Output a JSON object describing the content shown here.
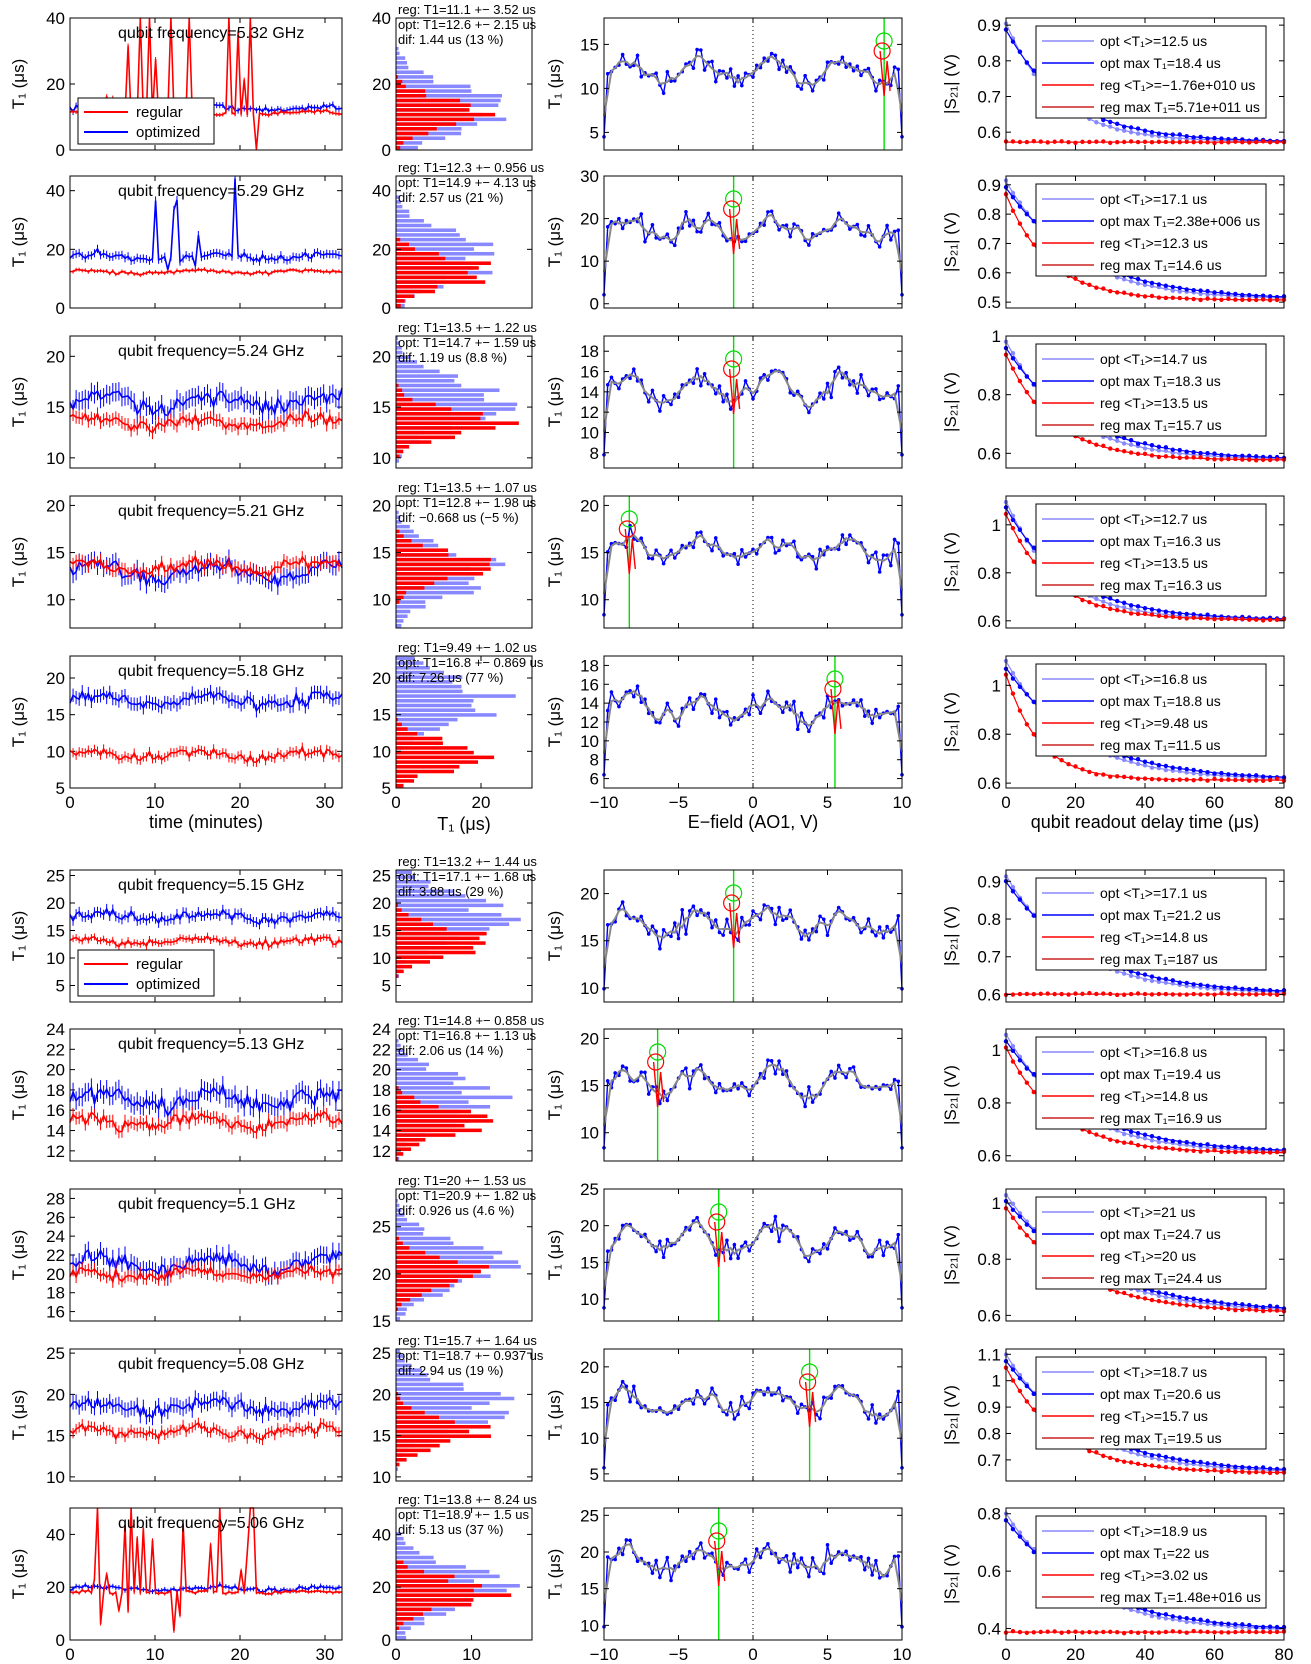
{
  "figure": {
    "colors": {
      "regular": "#ff0000",
      "optimized": "#0000ff",
      "optimized_light": "#8888ff",
      "fit_gray": "#888888",
      "marker_line": "#00dd00"
    },
    "legend_labels": {
      "regular": "regular",
      "optimized": "optimized"
    },
    "axis_labels": {
      "t1": "T₁ (μs)",
      "s21": "|S₂₁| (V)",
      "time": "time (minutes)",
      "hist": "T₁ (μs)",
      "efield": "E−field (AO1, V)",
      "delay": "qubit readout delay time (μs)"
    },
    "x_ticks": {
      "time": [
        "0",
        "10",
        "20",
        "30"
      ],
      "hist_top": [
        "0",
        "20"
      ],
      "hist_bottom": [
        "0",
        "10"
      ],
      "efield": [
        "−10",
        "−5",
        "0",
        "5",
        "10"
      ],
      "delay": [
        "0",
        "20",
        "40",
        "60",
        "80"
      ]
    }
  },
  "chart_data": [
    {
      "type": "line",
      "panel": "time-series",
      "title": "qubit frequency=5.32 GHz",
      "ylim": [
        0,
        40
      ],
      "yticks": [
        0,
        20,
        40
      ],
      "reg": 11.1,
      "opt": 12.6,
      "hist": {
        "ylim": [
          0,
          40
        ],
        "yticks": [
          0,
          20,
          40
        ],
        "lines": [
          "reg: T1=11.1 +− 3.52 us",
          "opt: T1=12.6 +− 2.15 us",
          "dif: 1.44 us (13 %)"
        ]
      },
      "efield": {
        "ylim": [
          3,
          18
        ],
        "yticks": [
          5,
          10,
          15
        ],
        "vline": 8.8
      },
      "decay": {
        "ylim": [
          0.55,
          0.92
        ],
        "yticks": [
          0.6,
          0.7,
          0.8,
          0.9
        ],
        "legend": [
          "opt <T₁>=12.5 us",
          "opt max T₁=18.4 us",
          "reg <T₁>=−1.76e+010 us",
          "reg max T₁=5.71e+011 us"
        ]
      }
    },
    {
      "type": "line",
      "panel": "time-series",
      "title": "qubit frequency=5.29 GHz",
      "ylim": [
        0,
        45
      ],
      "yticks": [
        0,
        20,
        40
      ],
      "reg": 12.3,
      "opt": 17.5,
      "hist": {
        "ylim": [
          0,
          45
        ],
        "yticks": [
          0,
          20,
          40
        ],
        "lines": [
          "reg: T1=12.3 +− 0.956 us",
          "opt: T1=14.9 +− 4.13 us",
          "dif: 2.57 us (21 %)"
        ]
      },
      "efield": {
        "ylim": [
          -1,
          30
        ],
        "yticks": [
          0,
          10,
          20,
          30
        ],
        "vline": -1.3
      },
      "decay": {
        "ylim": [
          0.48,
          0.93
        ],
        "yticks": [
          0.5,
          0.6,
          0.7,
          0.8,
          0.9
        ],
        "legend": [
          "opt <T₁>=17.1 us",
          "opt max T₁=2.38e+006 us",
          "reg <T₁>=12.3 us",
          "reg max T₁=14.6 us"
        ]
      }
    },
    {
      "type": "line",
      "panel": "time-series",
      "title": "qubit frequency=5.24 GHz",
      "ylim": [
        9,
        22
      ],
      "yticks": [
        10,
        15,
        20
      ],
      "reg": 13.5,
      "opt": 15.5,
      "hist": {
        "ylim": [
          9,
          22
        ],
        "yticks": [
          10,
          15,
          20
        ],
        "lines": [
          "reg: T1=13.5 +− 1.22 us",
          "opt: T1=14.7 +− 1.59 us",
          "dif: 1.19 us (8.8 %)"
        ]
      },
      "efield": {
        "ylim": [
          6.5,
          19.5
        ],
        "yticks": [
          8,
          10,
          12,
          14,
          16,
          18
        ],
        "vline": -1.3
      },
      "decay": {
        "ylim": [
          0.55,
          1.0
        ],
        "yticks": [
          0.6,
          0.8,
          1
        ],
        "legend": [
          "opt <T₁>=14.7 us",
          "opt max T₁=18.3 us",
          "reg <T₁>=13.5 us",
          "reg max T₁=15.7 us"
        ]
      }
    },
    {
      "type": "line",
      "panel": "time-series",
      "title": "qubit frequency=5.21 GHz",
      "ylim": [
        7,
        21
      ],
      "yticks": [
        10,
        15,
        20
      ],
      "reg": 13.5,
      "opt": 13.0,
      "hist": {
        "ylim": [
          7,
          21
        ],
        "yticks": [
          10,
          15,
          20
        ],
        "lines": [
          "reg: T1=13.5 +− 1.07 us",
          "opt: T1=12.8 +− 1.98 us",
          "dif: −0.668 us (−5 %)"
        ]
      },
      "efield": {
        "ylim": [
          7,
          21
        ],
        "yticks": [
          10,
          15,
          20
        ],
        "vline": -8.3
      },
      "decay": {
        "ylim": [
          0.57,
          1.12
        ],
        "yticks": [
          0.6,
          0.8,
          1
        ],
        "legend": [
          "opt <T₁>=12.7 us",
          "opt max T₁=16.3 us",
          "reg <T₁>=13.5 us",
          "reg max T₁=16.3 us"
        ]
      }
    },
    {
      "type": "line",
      "panel": "time-series",
      "title": "qubit frequency=5.18 GHz",
      "ylim": [
        5,
        23
      ],
      "yticks": [
        5,
        10,
        15,
        20
      ],
      "reg": 9.5,
      "opt": 17.0,
      "hist": {
        "ylim": [
          5,
          23
        ],
        "yticks": [
          5,
          10,
          15,
          20
        ],
        "lines": [
          "reg: T1=9.49 +− 1.02 us",
          "opt: T1=16.8 +− 0.869 us",
          "dif: 7.26 us (77 %)"
        ]
      },
      "efield": {
        "ylim": [
          5,
          19
        ],
        "yticks": [
          6,
          8,
          10,
          12,
          14,
          16,
          18
        ],
        "vline": 5.5
      },
      "decay": {
        "ylim": [
          0.58,
          1.12
        ],
        "yticks": [
          0.6,
          0.8,
          1
        ],
        "legend": [
          "opt <T₁>=16.8 us",
          "opt max T₁=18.8 us",
          "reg <T₁>=9.48 us",
          "reg max T₁=11.5 us"
        ]
      }
    },
    {
      "type": "line",
      "panel": "time-series",
      "title": "qubit frequency=5.15 GHz",
      "ylim": [
        2,
        26
      ],
      "yticks": [
        5,
        10,
        15,
        20,
        25
      ],
      "reg": 13.0,
      "opt": 17.5,
      "hist": {
        "ylim": [
          2,
          26
        ],
        "yticks": [
          5,
          10,
          15,
          20,
          25
        ],
        "lines": [
          "reg: T1=13.2 +− 1.44 us",
          "opt: T1=17.1 +− 1.68 us",
          "dif: 3.88 us (29 %)"
        ]
      },
      "efield": {
        "ylim": [
          8.5,
          22.5
        ],
        "yticks": [
          10,
          15,
          20
        ],
        "vline": -1.3
      },
      "decay": {
        "ylim": [
          0.58,
          0.93
        ],
        "yticks": [
          0.6,
          0.7,
          0.8,
          0.9
        ],
        "legend": [
          "opt <T₁>=17.1 us",
          "opt max T₁=21.2 us",
          "reg <T₁>=14.8 us",
          "reg max T₁=187 us"
        ]
      }
    },
    {
      "type": "line",
      "panel": "time-series",
      "title": "qubit frequency=5.13 GHz",
      "ylim": [
        11,
        24
      ],
      "yticks": [
        12,
        14,
        16,
        18,
        20,
        22,
        24
      ],
      "reg": 14.8,
      "opt": 17.0,
      "hist": {
        "ylim": [
          11,
          24
        ],
        "yticks": [
          12,
          14,
          16,
          18,
          20,
          22,
          24
        ],
        "lines": [
          "reg: T1=14.8 +− 0.858 us",
          "opt: T1=16.8 +− 1.13 us",
          "dif: 2.06 us (14 %)"
        ]
      },
      "efield": {
        "ylim": [
          7,
          21
        ],
        "yticks": [
          10,
          15,
          20
        ],
        "vline": -6.4
      },
      "decay": {
        "ylim": [
          0.58,
          1.08
        ],
        "yticks": [
          0.6,
          0.8,
          1
        ],
        "legend": [
          "opt <T₁>=16.8 us",
          "opt max T₁=19.4 us",
          "reg <T₁>=14.8 us",
          "reg max T₁=16.9 us"
        ]
      }
    },
    {
      "type": "line",
      "panel": "time-series",
      "title": "qubit frequency=5.1 GHz",
      "ylim": [
        15,
        29
      ],
      "yticks": [
        16,
        18,
        20,
        22,
        24,
        26,
        28
      ],
      "reg": 20.0,
      "opt": 21.0,
      "hist": {
        "ylim": [
          15,
          29
        ],
        "yticks": [
          15,
          20,
          25
        ],
        "lines": [
          "reg: T1=20 +− 1.53 us",
          "opt: T1=20.9 +− 1.82 us",
          "dif: 0.926 us (4.6 %)"
        ]
      },
      "efield": {
        "ylim": [
          7,
          25
        ],
        "yticks": [
          10,
          15,
          20,
          25
        ],
        "vline": -2.3
      },
      "decay": {
        "ylim": [
          0.58,
          1.05
        ],
        "yticks": [
          0.6,
          0.8,
          1
        ],
        "legend": [
          "opt <T₁>=21 us",
          "opt max T₁=24.7 us",
          "reg <T₁>=20 us",
          "reg max T₁=24.4 us"
        ]
      }
    },
    {
      "type": "line",
      "panel": "time-series",
      "title": "qubit frequency=5.08 GHz",
      "ylim": [
        9.5,
        25.5
      ],
      "yticks": [
        10,
        15,
        20,
        25
      ],
      "reg": 15.5,
      "opt": 18.5,
      "hist": {
        "ylim": [
          9.5,
          25.5
        ],
        "yticks": [
          10,
          15,
          20,
          25
        ],
        "lines": [
          "reg: T1=15.7 +− 1.64 us",
          "opt: T1=18.7 +− 0.937 us",
          "dif: 2.94 us (19 %)"
        ]
      },
      "efield": {
        "ylim": [
          4,
          22.5
        ],
        "yticks": [
          5,
          10,
          15,
          20
        ],
        "vline": 3.8
      },
      "decay": {
        "ylim": [
          0.62,
          1.12
        ],
        "yticks": [
          0.7,
          0.8,
          0.9,
          1,
          1.1
        ],
        "legend": [
          "opt <T₁>=18.7 us",
          "opt max T₁=20.6 us",
          "reg <T₁>=15.7 us",
          "reg max T₁=19.5 us"
        ]
      }
    },
    {
      "type": "line",
      "panel": "time-series",
      "title": "qubit frequency=5.06 GHz",
      "ylim": [
        0,
        50
      ],
      "yticks": [
        0,
        20,
        40
      ],
      "reg": 18.0,
      "opt": 19.5,
      "hist": {
        "ylim": [
          0,
          50
        ],
        "yticks": [
          0,
          20,
          40
        ],
        "lines": [
          "reg: T1=13.8 +− 8.24 us",
          "opt: T1=18.9 +− 1.5 us",
          "dif: 5.13 us (37 %)"
        ]
      },
      "efield": {
        "ylim": [
          8,
          26
        ],
        "yticks": [
          10,
          15,
          20,
          25
        ],
        "vline": -2.3
      },
      "decay": {
        "ylim": [
          0.36,
          0.82
        ],
        "yticks": [
          0.4,
          0.6,
          0.8
        ],
        "legend": [
          "opt <T₁>=18.9 us",
          "opt max T₁=22 us",
          "reg <T₁>=3.02 us",
          "reg max T₁=1.48e+016 us"
        ]
      }
    }
  ]
}
